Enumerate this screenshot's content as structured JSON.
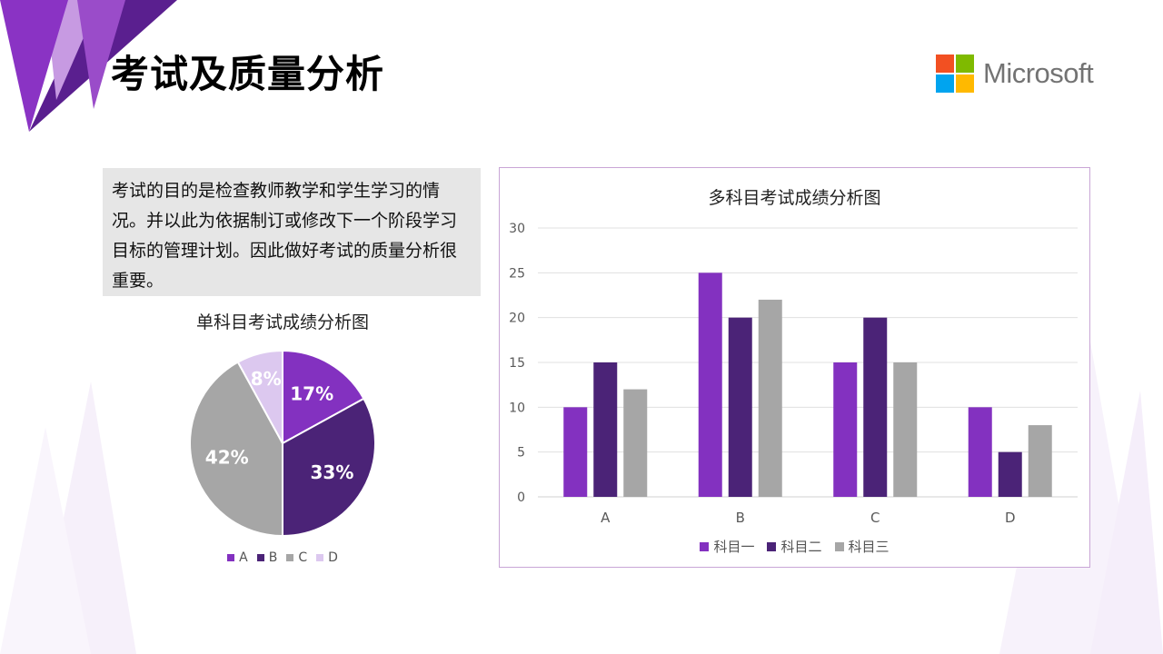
{
  "slide": {
    "title": "考试及质量分析",
    "logo_text": "Microsoft",
    "description": "考试的目的是检查教师教学和学生学习的情况。并以此为依据制订或修改下一个阶段学习目标的管理计划。因此做好考试的质量分析很重要。"
  },
  "colors": {
    "accent": "#7b2fbe",
    "series1": "#8331c0",
    "series2": "#4b2377",
    "series3": "#a6a6a6",
    "slice_d": "#dcc8ef",
    "logo_red": "#f25022",
    "logo_green": "#7fba00",
    "logo_blue": "#00a4ef",
    "logo_yellow": "#ffb900"
  },
  "chart_data": [
    {
      "type": "pie",
      "title": "单科目考试成绩分析图",
      "categories": [
        "A",
        "B",
        "C",
        "D"
      ],
      "values": [
        17,
        33,
        42,
        8
      ],
      "labels": [
        "17%",
        "33%",
        "42%",
        "8%"
      ],
      "legend": "bottom"
    },
    {
      "type": "bar",
      "title": "多科目考试成绩分析图",
      "categories": [
        "A",
        "B",
        "C",
        "D"
      ],
      "series": [
        {
          "name": "科目一",
          "values": [
            10,
            25,
            15,
            10
          ]
        },
        {
          "name": "科目二",
          "values": [
            15,
            20,
            20,
            5
          ]
        },
        {
          "name": "科目三",
          "values": [
            12,
            22,
            15,
            8
          ]
        }
      ],
      "ylim": [
        0,
        30
      ],
      "yticks": [
        "0",
        "5",
        "10",
        "15",
        "20",
        "25",
        "30"
      ],
      "grid": true,
      "legend": "bottom"
    }
  ]
}
